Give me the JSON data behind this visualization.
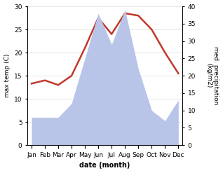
{
  "months": [
    "Jan",
    "Feb",
    "Mar",
    "Apr",
    "May",
    "Jun",
    "Jul",
    "Aug",
    "Sep",
    "Oct",
    "Nov",
    "Dec"
  ],
  "temperature": [
    13.3,
    14.0,
    13.0,
    15.0,
    21.0,
    27.5,
    24.0,
    28.5,
    28.0,
    25.0,
    20.0,
    15.5
  ],
  "precipitation": [
    8.0,
    8.0,
    8.0,
    12.0,
    25.0,
    38.0,
    29.0,
    39.0,
    22.0,
    10.0,
    7.0,
    13.0
  ],
  "temp_color": "#c0392b",
  "precip_fill_color": "#b8c4e8",
  "temp_ylim": [
    0,
    30
  ],
  "precip_ylim": [
    0,
    40
  ],
  "xlabel": "date (month)",
  "ylabel_left": "max temp (C)",
  "ylabel_right": "med. precipitation\n(kg/m2)",
  "background_color": "#ffffff",
  "grid_color": "#dddddd",
  "temp_linewidth": 1.8,
  "figsize": [
    3.18,
    2.47
  ],
  "dpi": 100
}
